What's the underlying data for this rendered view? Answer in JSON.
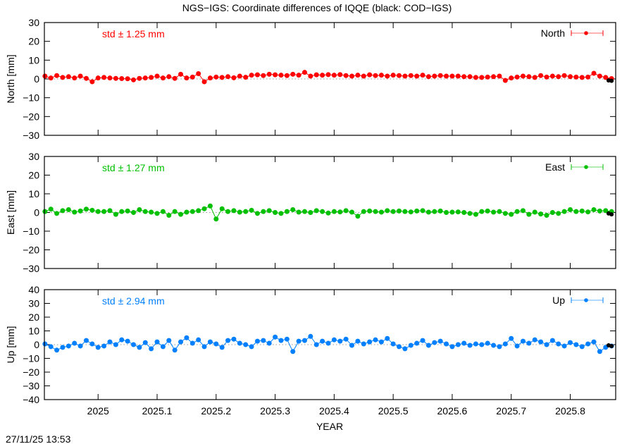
{
  "chart_data": {
    "type": "line",
    "title": "NGS−IGS: Coordinate differences of IQQE (black: COD−IGS)",
    "xlabel": "YEAR",
    "timestamp": "27/11/25 13:53",
    "xlim": [
      2024.909,
      2025.877
    ],
    "xticks": [
      2025,
      2025.1,
      2025.2,
      2025.3,
      2025.4,
      2025.5,
      2025.6,
      2025.7,
      2025.8
    ],
    "xtick_labels": [
      "2025",
      "2025.1",
      "2025.2",
      "2025.3",
      "2025.4",
      "2025.5",
      "2025.6",
      "2025.7",
      "2025.8"
    ],
    "grid": false,
    "legend_placement": "top-right",
    "x": [
      2024.91,
      2024.92,
      2024.93,
      2024.94,
      2024.95,
      2024.96,
      2024.97,
      2024.98,
      2024.99,
      2025.0,
      2025.01,
      2025.02,
      2025.03,
      2025.04,
      2025.05,
      2025.06,
      2025.07,
      2025.08,
      2025.09,
      2025.1,
      2025.11,
      2025.12,
      2025.13,
      2025.14,
      2025.15,
      2025.16,
      2025.17,
      2025.18,
      2025.19,
      2025.2,
      2025.21,
      2025.22,
      2025.23,
      2025.24,
      2025.25,
      2025.26,
      2025.27,
      2025.28,
      2025.29,
      2025.3,
      2025.31,
      2025.32,
      2025.33,
      2025.34,
      2025.35,
      2025.36,
      2025.37,
      2025.38,
      2025.39,
      2025.4,
      2025.41,
      2025.42,
      2025.43,
      2025.44,
      2025.45,
      2025.46,
      2025.47,
      2025.48,
      2025.49,
      2025.5,
      2025.51,
      2025.52,
      2025.53,
      2025.54,
      2025.55,
      2025.56,
      2025.57,
      2025.58,
      2025.59,
      2025.6,
      2025.61,
      2025.62,
      2025.63,
      2025.64,
      2025.65,
      2025.66,
      2025.67,
      2025.68,
      2025.69,
      2025.7,
      2025.71,
      2025.72,
      2025.73,
      2025.74,
      2025.75,
      2025.76,
      2025.77,
      2025.78,
      2025.79,
      2025.8,
      2025.81,
      2025.82,
      2025.83,
      2025.84,
      2025.85,
      2025.86,
      2025.87
    ],
    "panels": [
      {
        "ylabel": "North [mm]",
        "ylim": [
          -30,
          30
        ],
        "yticks": [
          30,
          20,
          10,
          0,
          -10,
          -20,
          -30
        ],
        "ytick_labels": [
          "30",
          "20",
          "10",
          "0",
          "−10",
          "−20",
          "−30"
        ],
        "std_label": "std ± 1.25 mm",
        "series": {
          "name": "North",
          "color": "#ff0000",
          "values": [
            1.5,
            0.5,
            1.8,
            0.8,
            1.2,
            0.5,
            1.5,
            0.3,
            -1.5,
            0.5,
            0.8,
            0.5,
            0.3,
            0.2,
            0.1,
            -0.5,
            0.3,
            0.5,
            0.8,
            1.5,
            0.5,
            1.2,
            0.3,
            2.5,
            0.5,
            1.0,
            2.8,
            -1.5,
            0.5,
            1.0,
            0.8,
            1.2,
            0.6,
            1.5,
            0.9,
            2.0,
            2.2,
            1.8,
            2.5,
            2.2,
            2.0,
            1.8,
            2.5,
            2.0,
            3.5,
            1.5,
            2.2,
            2.0,
            2.3,
            2.0,
            2.3,
            1.8,
            1.5,
            2.0,
            1.5,
            2.2,
            1.8,
            2.0,
            1.5,
            2.0,
            1.8,
            1.5,
            1.8,
            1.5,
            2.0,
            1.2,
            1.5,
            1.8,
            1.5,
            1.5,
            1.5,
            1.2,
            1.2,
            0.8,
            0.8,
            1.0,
            1.2,
            1.5,
            -0.8,
            0.5,
            1.0,
            1.5,
            1.2,
            0.8,
            1.8,
            1.0,
            1.5,
            1.2,
            1.8,
            1.2,
            1.0,
            0.8,
            1.0,
            3.0,
            1.5,
            0.8,
            0.2
          ]
        },
        "reference": {
          "color": "#000000",
          "x": [
            2025.865,
            2025.87
          ],
          "values": [
            -0.8,
            -1.0
          ]
        }
      },
      {
        "ylabel": "East [mm]",
        "ylim": [
          -30,
          30
        ],
        "yticks": [
          30,
          20,
          10,
          0,
          -10,
          -20,
          -30
        ],
        "ytick_labels": [
          "30",
          "20",
          "10",
          "0",
          "−10",
          "−20",
          "−30"
        ],
        "std_label": "std ± 1.27 mm",
        "series": {
          "name": "East",
          "color": "#00c000",
          "values": [
            0.5,
            1.8,
            -0.5,
            1.0,
            1.5,
            0.2,
            0.8,
            1.8,
            1.2,
            0.5,
            0.5,
            1.0,
            -1.0,
            0.5,
            0.8,
            0.0,
            1.5,
            0.5,
            0.2,
            -0.5,
            0.5,
            -1.5,
            0.5,
            -1.0,
            0.2,
            0.5,
            1.0,
            2.0,
            3.5,
            -3.5,
            2.0,
            0.5,
            1.0,
            0.2,
            0.5,
            1.2,
            -0.5,
            0.5,
            1.0,
            0.0,
            -0.5,
            0.5,
            1.5,
            0.2,
            0.5,
            0.0,
            1.0,
            0.5,
            -0.3,
            0.5,
            0.3,
            1.0,
            0.2,
            -2.0,
            0.5,
            0.8,
            0.5,
            0.2,
            1.0,
            0.5,
            0.8,
            0.5,
            0.3,
            0.8,
            1.0,
            0.2,
            0.5,
            0.8,
            0.0,
            0.2,
            0.3,
            0.0,
            -0.5,
            -1.0,
            0.5,
            0.8,
            0.2,
            0.5,
            -0.5,
            -1.0,
            0.5,
            1.0,
            -1.0,
            0.2,
            -0.8,
            -1.5,
            0.0,
            -0.5,
            0.5,
            1.5,
            0.5,
            0.8,
            0.3,
            1.5,
            0.8,
            1.0,
            0.5
          ]
        },
        "reference": {
          "color": "#000000",
          "x": [
            2025.865,
            2025.87
          ],
          "values": [
            -0.5,
            -1.0
          ]
        }
      },
      {
        "ylabel": "Up [mm]",
        "ylim": [
          -40,
          40
        ],
        "yticks": [
          40,
          30,
          20,
          10,
          0,
          -10,
          -20,
          -30,
          -40
        ],
        "ytick_labels": [
          "40",
          "30",
          "20",
          "10",
          "0",
          "−10",
          "−20",
          "−30",
          "−40"
        ],
        "std_label": "std ± 2.94 mm",
        "series": {
          "name": "Up",
          "color": "#0080ff",
          "values": [
            0.5,
            -1.5,
            -4.0,
            -2.0,
            -1.0,
            1.0,
            -1.0,
            3.0,
            0.5,
            -2.0,
            -1.0,
            2.0,
            0.0,
            3.5,
            2.5,
            0.0,
            -2.0,
            1.5,
            -3.0,
            2.0,
            -1.5,
            3.0,
            -4.0,
            2.0,
            5.0,
            1.0,
            3.5,
            -1.5,
            2.0,
            0.5,
            -2.0,
            3.0,
            4.0,
            1.0,
            0.0,
            -1.5,
            2.5,
            3.0,
            1.0,
            5.5,
            3.0,
            4.0,
            -5.0,
            2.5,
            3.0,
            6.0,
            0.0,
            2.5,
            1.0,
            3.5,
            2.5,
            4.0,
            -0.5,
            2.5,
            0.5,
            2.0,
            3.5,
            2.0,
            4.5,
            0.5,
            -1.5,
            -3.0,
            -0.5,
            1.0,
            3.0,
            -0.5,
            1.5,
            2.5,
            0.5,
            -1.5,
            0.0,
            1.0,
            -0.5,
            0.5,
            0.0,
            1.0,
            -0.5,
            -1.5,
            0.5,
            4.5,
            -1.0,
            2.5,
            1.0,
            3.5,
            2.0,
            0.0,
            3.0,
            0.5,
            -1.0,
            1.5,
            0.0,
            -1.5,
            0.5,
            2.0,
            -5.0,
            -2.0,
            -1.0
          ]
        },
        "reference": {
          "color": "#000000",
          "x": [
            2025.865,
            2025.87
          ],
          "values": [
            -0.5,
            -1.0
          ]
        }
      }
    ]
  }
}
